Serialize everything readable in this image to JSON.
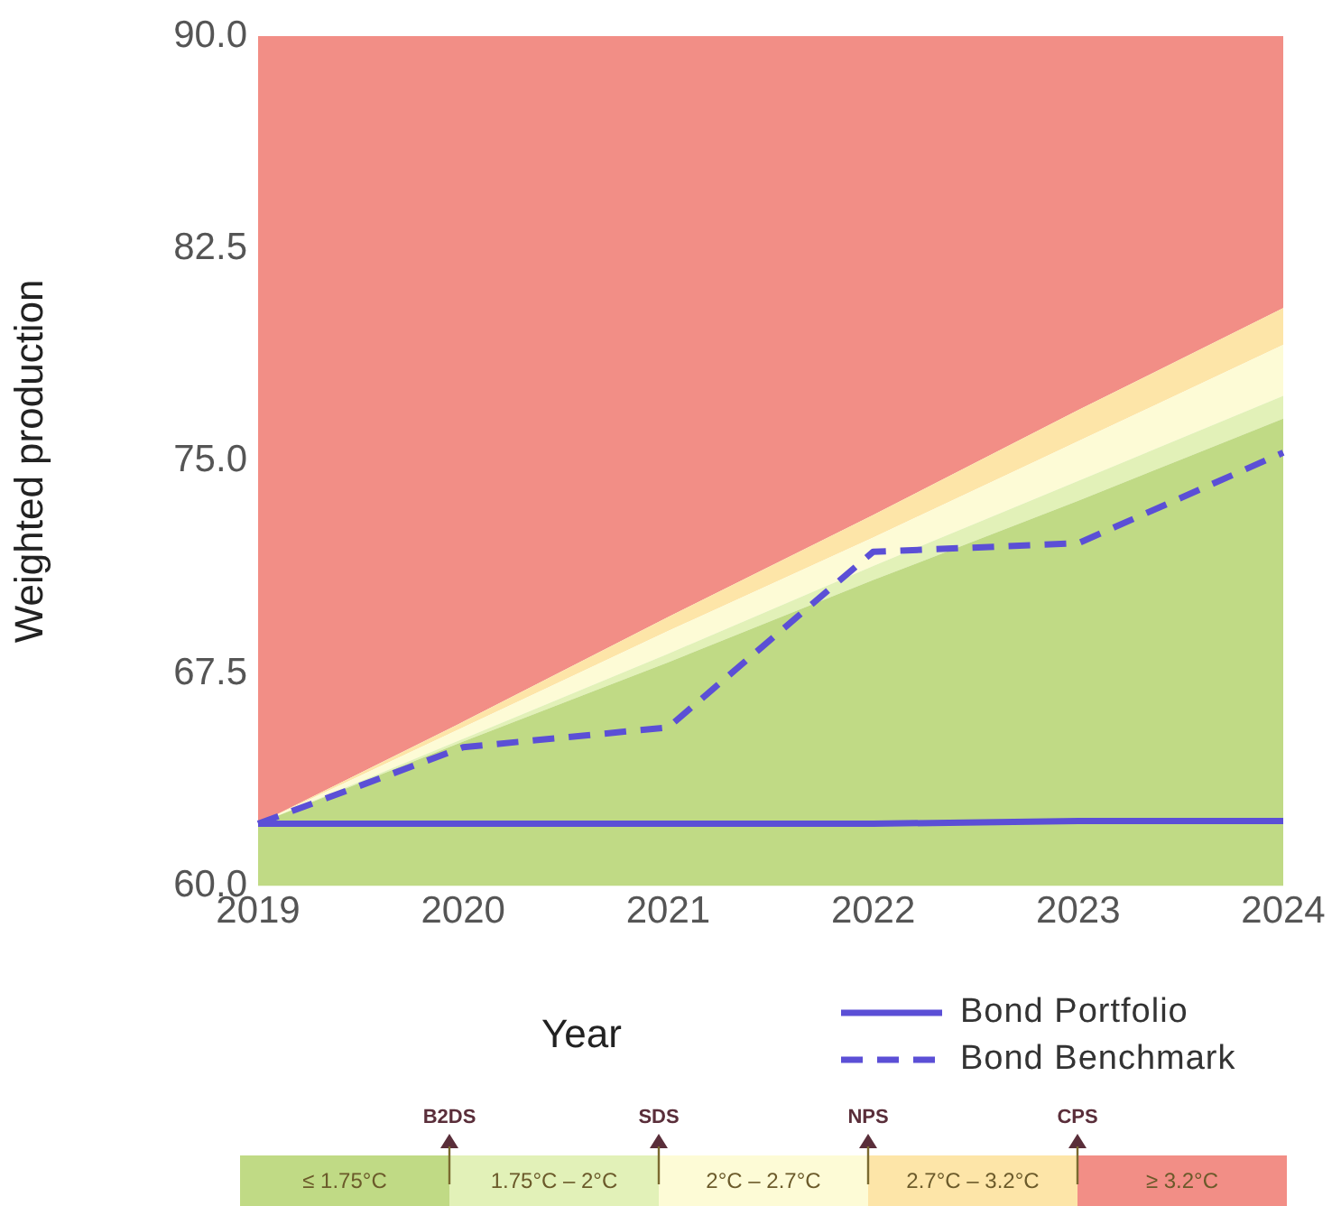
{
  "chart_data": {
    "type": "area",
    "xlabel": "Year",
    "ylabel": "Weighted production",
    "categories": [
      "2019",
      "2020",
      "2021",
      "2022",
      "2023",
      "2024"
    ],
    "ylim": [
      60,
      90
    ],
    "yticks": [
      {
        "value": 60,
        "label": "60.0"
      },
      {
        "value": 67.5,
        "label": "67.5"
      },
      {
        "value": 75,
        "label": "75.0"
      },
      {
        "value": 82.5,
        "label": "82.5"
      },
      {
        "value": 90,
        "label": "90.0"
      }
    ],
    "grid": false,
    "legend": "bottom right",
    "marker": "none",
    "series": [
      {
        "name": "≤ 1.75°C",
        "color": "#c0da85",
        "values": [
          62.2,
          65.1,
          67.9,
          70.8,
          73.6,
          76.5
        ]
      },
      {
        "name": "1.75°C – 2°C",
        "color": "#e2f1b8",
        "values": [
          62.2,
          65.2,
          68.2,
          71.3,
          74.3,
          77.3
        ]
      },
      {
        "name": "2°C – 2.7°C",
        "color": "#fdfbd6",
        "values": [
          62.2,
          65.6,
          69.0,
          72.3,
          75.7,
          79.1
        ]
      },
      {
        "name": "2.7°C – 3.2°C",
        "color": "#fde5a8",
        "values": [
          62.2,
          65.8,
          69.5,
          73.1,
          76.8,
          80.4
        ]
      },
      {
        "name": "≥ 3.2°C",
        "color": "#f28e86",
        "values": [
          90,
          90,
          90,
          90,
          90,
          90
        ]
      },
      {
        "name": "Bond Portfolio",
        "type": "line",
        "color": "#5b4fd6",
        "line_style": "solid",
        "values": [
          62.2,
          62.2,
          62.2,
          62.2,
          62.3,
          62.3
        ]
      },
      {
        "name": "Bond Benchmark",
        "type": "line",
        "color": "#5b4fd6",
        "line_style": "dashed",
        "values": [
          62.2,
          64.9,
          65.6,
          71.8,
          72.1,
          75.3
        ]
      }
    ],
    "annotations": [
      "B2DS",
      "SDS",
      "NPS",
      "CPS"
    ]
  }
}
